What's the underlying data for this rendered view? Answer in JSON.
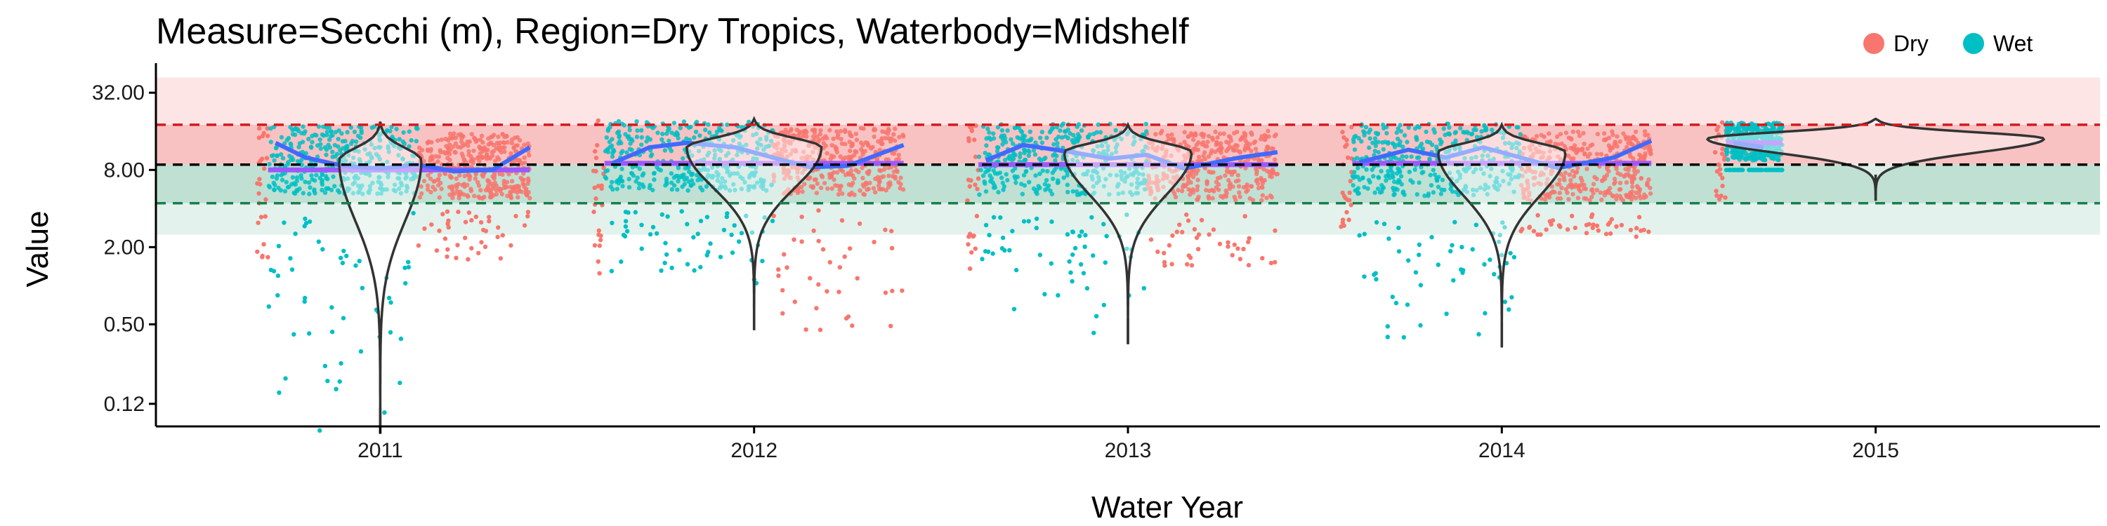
{
  "chart_data": {
    "type": "scatter",
    "title": "Measure=Secchi (m), Region=Dry Tropics, Waterbody=Midshelf",
    "xlabel": "Water Year",
    "ylabel": "Value",
    "y_scale": "log2",
    "ylim": [
      0.08,
      48
    ],
    "y_ticks": [
      0.12,
      0.5,
      2,
      8,
      32
    ],
    "y_tick_labels": [
      "0.12",
      "0.50",
      "2.00",
      "8.00",
      "32.00"
    ],
    "x_ticks": [
      2011,
      2012,
      2013,
      2014,
      2015
    ],
    "x_tick_labels": [
      "2011",
      "2012",
      "2013",
      "2014",
      "2015"
    ],
    "xlim": [
      2010.4,
      2015.6
    ],
    "grid": false,
    "legend": {
      "placement": "top-right",
      "entries": [
        {
          "label": "Dry",
          "color": "#F8766D"
        },
        {
          "label": "Wet",
          "color": "#00BFC4"
        }
      ]
    },
    "reference_lines": [
      {
        "y": 18,
        "color": "#D7191C",
        "style": "dashed"
      },
      {
        "y": 8.8,
        "color": "#000000",
        "style": "dashed"
      },
      {
        "y": 4.4,
        "color": "#1A7F4B",
        "style": "dashed"
      }
    ],
    "bands": [
      {
        "ymin": 18,
        "ymax": 42,
        "color": "#FDE5E5"
      },
      {
        "ymin": 8.8,
        "ymax": 18,
        "color": "#F8C2C2"
      },
      {
        "ymin": 4.4,
        "ymax": 8.8,
        "color": "#BFE0D3"
      },
      {
        "ymin": 2.5,
        "ymax": 4.4,
        "color": "#E3F2EC"
      }
    ],
    "series": [
      {
        "name": "Dry",
        "color": "#F8766D"
      },
      {
        "name": "Wet",
        "color": "#00BFC4"
      }
    ],
    "years": [
      {
        "year": 2011,
        "wet_start": 2010.7,
        "wet_end": 2011.1,
        "dry_end": 2011.4,
        "core_low": 3.8,
        "core_high": 18,
        "wet_min": 0.07,
        "dry_min": 1.6,
        "violin": {
          "ymin": 0.07,
          "ymax": 19,
          "mode": 9.5,
          "halfwidth": 0.11
        },
        "trend_wet": [
          [
            2010.72,
            13
          ],
          [
            2010.8,
            10
          ],
          [
            2010.9,
            8.6
          ],
          [
            2011.0,
            8.2
          ],
          [
            2011.1,
            8.8
          ],
          [
            2011.2,
            7.8
          ],
          [
            2011.3,
            8.0
          ],
          [
            2011.4,
            12
          ]
        ],
        "median": 8.0
      },
      {
        "year": 2012,
        "wet_start": 2011.6,
        "wet_end": 2012.05,
        "dry_end": 2012.4,
        "core_low": 4.0,
        "core_high": 20,
        "wet_min": 0.9,
        "dry_min": 0.45,
        "violin": {
          "ymin": 0.45,
          "ymax": 20,
          "mode": 12,
          "halfwidth": 0.18
        },
        "trend_wet": [
          [
            2011.62,
            9
          ],
          [
            2011.72,
            12
          ],
          [
            2011.82,
            13
          ],
          [
            2011.95,
            12
          ],
          [
            2012.05,
            10
          ],
          [
            2012.15,
            8.4
          ],
          [
            2012.25,
            8.6
          ],
          [
            2012.4,
            12.5
          ]
        ],
        "median": 9.0
      },
      {
        "year": 2013,
        "wet_start": 2012.6,
        "wet_end": 2013.05,
        "dry_end": 2013.4,
        "core_low": 3.6,
        "core_high": 19,
        "wet_min": 0.36,
        "dry_min": 1.3,
        "violin": {
          "ymin": 0.35,
          "ymax": 18,
          "mode": 11,
          "halfwidth": 0.17
        },
        "trend_wet": [
          [
            2012.62,
            9.5
          ],
          [
            2012.72,
            12.5
          ],
          [
            2012.85,
            11
          ],
          [
            2012.95,
            9.8
          ],
          [
            2013.05,
            10.5
          ],
          [
            2013.15,
            8.2
          ],
          [
            2013.3,
            10
          ],
          [
            2013.4,
            11
          ]
        ],
        "median": 8.8
      },
      {
        "year": 2014,
        "wet_start": 2013.6,
        "wet_end": 2014.05,
        "dry_end": 2014.4,
        "core_low": 3.6,
        "core_high": 19,
        "wet_min": 0.33,
        "dry_min": 2.4,
        "violin": {
          "ymin": 0.33,
          "ymax": 18,
          "mode": 11,
          "halfwidth": 0.17
        },
        "trend_wet": [
          [
            2013.62,
            9.2
          ],
          [
            2013.75,
            11.5
          ],
          [
            2013.85,
            10
          ],
          [
            2013.95,
            12
          ],
          [
            2014.05,
            10
          ],
          [
            2014.15,
            8.3
          ],
          [
            2014.3,
            10
          ],
          [
            2014.4,
            13.5
          ]
        ],
        "median": 9.0
      },
      {
        "year": 2015,
        "wet_start": 2014.6,
        "wet_end": 2014.75,
        "dry_end": 2014.6,
        "core_low": 8.0,
        "core_high": 19,
        "wet_min": 8.0,
        "dry_min": 4.6,
        "violin": {
          "ymin": 4.6,
          "ymax": 20,
          "mode": 14,
          "halfwidth": 0.45
        },
        "trend_wet": [
          [
            2014.62,
            13
          ],
          [
            2014.7,
            12
          ]
        ],
        "median": 13
      }
    ]
  }
}
